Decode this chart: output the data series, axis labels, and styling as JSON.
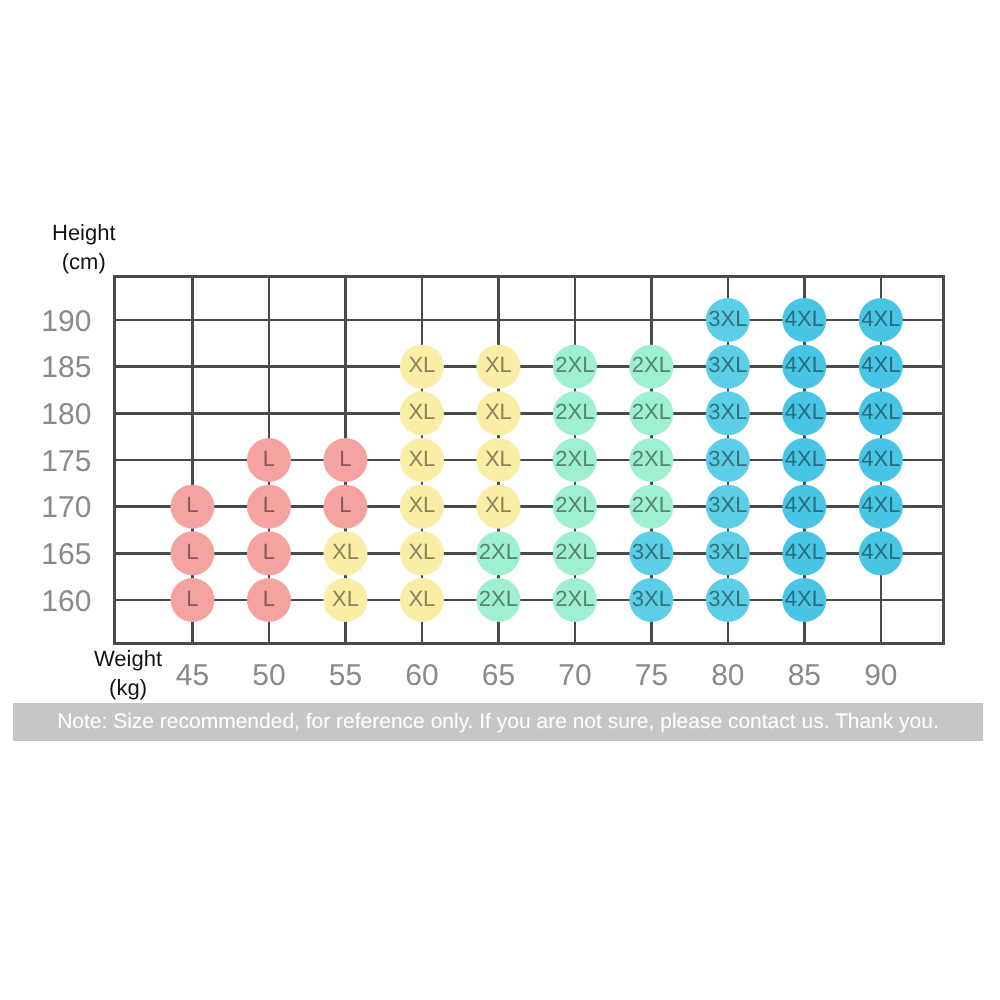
{
  "chart_data": {
    "type": "scatter",
    "xlabel": "Weight\n(kg)",
    "ylabel": "Height\n(cm)",
    "annotations": [
      "Note: Size recommended, for reference only. If you are not sure, please contact us. Thank you."
    ],
    "series": [
      {
        "name": "L",
        "color": "#f4a3a0",
        "x": [
          45,
          45,
          45,
          50,
          50,
          50,
          50,
          55,
          55
        ],
        "values": [
          170,
          165,
          160,
          175,
          170,
          165,
          160,
          175,
          170
        ]
      },
      {
        "name": "XL",
        "color": "#faeea6",
        "x": [
          55,
          55,
          60,
          60,
          60,
          60,
          60,
          60,
          65,
          65,
          65,
          65
        ],
        "values": [
          165,
          160,
          185,
          180,
          175,
          170,
          165,
          160,
          185,
          180,
          175,
          170
        ]
      },
      {
        "name": "2XL",
        "color": "#9ef0d0",
        "x": [
          65,
          65,
          70,
          70,
          70,
          70,
          70,
          70,
          75,
          75,
          75,
          75
        ],
        "values": [
          165,
          160,
          185,
          180,
          175,
          170,
          165,
          160,
          185,
          180,
          175,
          170
        ]
      },
      {
        "name": "3XL",
        "color": "#5ccfe6",
        "x": [
          75,
          75,
          80,
          80,
          80,
          80,
          80,
          80,
          80
        ],
        "values": [
          165,
          160,
          190,
          185,
          180,
          175,
          170,
          165,
          160
        ]
      },
      {
        "name": "4XL",
        "color": "#48c4e4",
        "x": [
          85,
          85,
          85,
          85,
          85,
          85,
          85,
          90,
          90,
          90,
          90,
          90,
          90
        ],
        "values": [
          190,
          185,
          180,
          175,
          170,
          165,
          160,
          190,
          185,
          180,
          175,
          170,
          165
        ]
      }
    ],
    "xlim": [
      40,
      94
    ],
    "ylim": [
      155.5,
      194.5
    ],
    "xticks": [
      45,
      50,
      55,
      60,
      65,
      70,
      75,
      80,
      85,
      90
    ],
    "yticks": [
      160,
      165,
      170,
      175,
      180,
      185,
      190
    ],
    "grid": true,
    "legend": false,
    "marker": "circle"
  }
}
